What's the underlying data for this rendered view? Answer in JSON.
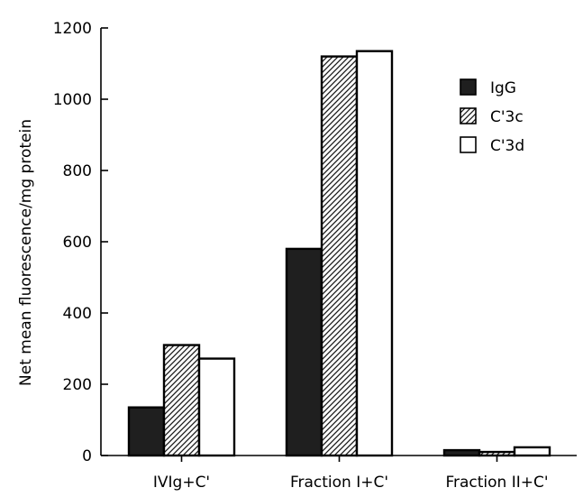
{
  "chart_data": {
    "type": "bar",
    "title": "",
    "xlabel": "",
    "ylabel": "Net mean fluorescence/mg protein",
    "ylim": [
      0,
      1200
    ],
    "yticks": [
      0,
      200,
      400,
      600,
      800,
      1000,
      1200
    ],
    "categories": [
      "IVIg+C'",
      "Fraction I+C'",
      "Fraction II+C'"
    ],
    "series": [
      {
        "name": "IgG",
        "fill": "solid-black",
        "values": [
          135,
          580,
          15
        ]
      },
      {
        "name": "C'3c",
        "fill": "diagonal-hatch",
        "values": [
          310,
          1120,
          10
        ]
      },
      {
        "name": "C'3d",
        "fill": "white",
        "values": [
          272,
          1135,
          23
        ]
      }
    ],
    "legend_position": "top-right",
    "grid": false
  }
}
